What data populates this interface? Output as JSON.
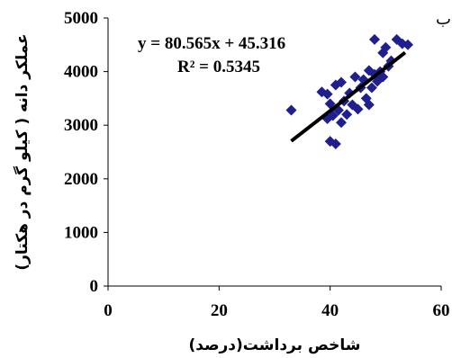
{
  "chart_data": {
    "type": "scatter",
    "panel_label": "ب",
    "xlabel": "شاخص برداشت(درصد)",
    "ylabel": "عملکر دانه ( کیلو گرم در هکتار)",
    "xlim": [
      0,
      60
    ],
    "ylim": [
      0,
      5000
    ],
    "x_ticks": [
      0,
      20,
      40,
      60
    ],
    "y_ticks": [
      0,
      1000,
      2000,
      3000,
      4000,
      5000
    ],
    "marker_color": "#1f1f8f",
    "trendline_color": "#000000",
    "equation": "y = 80.565x + 45.316",
    "r_squared": "R² = 0.5345",
    "trendline": {
      "slope": 80.565,
      "intercept": 45.316,
      "x_range": [
        33,
        53.5
      ]
    },
    "points": [
      {
        "x": 33.0,
        "y": 3280
      },
      {
        "x": 38.5,
        "y": 3620
      },
      {
        "x": 39.5,
        "y": 3580
      },
      {
        "x": 39.5,
        "y": 3120
      },
      {
        "x": 40.0,
        "y": 3400
      },
      {
        "x": 40.0,
        "y": 2700
      },
      {
        "x": 40.5,
        "y": 3180
      },
      {
        "x": 41.0,
        "y": 2650
      },
      {
        "x": 41.0,
        "y": 3750
      },
      {
        "x": 41.5,
        "y": 3280
      },
      {
        "x": 42.0,
        "y": 3800
      },
      {
        "x": 42.0,
        "y": 3050
      },
      {
        "x": 42.5,
        "y": 3450
      },
      {
        "x": 43.0,
        "y": 3200
      },
      {
        "x": 43.5,
        "y": 3600
      },
      {
        "x": 44.0,
        "y": 3380
      },
      {
        "x": 44.5,
        "y": 3900
      },
      {
        "x": 45.0,
        "y": 3300
      },
      {
        "x": 45.5,
        "y": 3700
      },
      {
        "x": 46.0,
        "y": 3850
      },
      {
        "x": 46.5,
        "y": 3500
      },
      {
        "x": 47.0,
        "y": 4020
      },
      {
        "x": 47.0,
        "y": 3380
      },
      {
        "x": 47.5,
        "y": 3700
      },
      {
        "x": 48.0,
        "y": 3950
      },
      {
        "x": 48.0,
        "y": 4600
      },
      {
        "x": 48.5,
        "y": 3820
      },
      {
        "x": 49.0,
        "y": 4000
      },
      {
        "x": 49.5,
        "y": 4350
      },
      {
        "x": 49.5,
        "y": 3900
      },
      {
        "x": 50.0,
        "y": 4450
      },
      {
        "x": 50.5,
        "y": 4100
      },
      {
        "x": 51.0,
        "y": 4200
      },
      {
        "x": 52.0,
        "y": 4600
      },
      {
        "x": 53.0,
        "y": 4520
      },
      {
        "x": 54.0,
        "y": 4500
      }
    ]
  }
}
